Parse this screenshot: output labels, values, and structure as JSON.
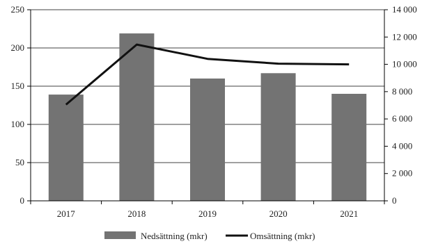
{
  "chart_data": {
    "type": "bar+line",
    "categories": [
      "2017",
      "2018",
      "2019",
      "2020",
      "2021"
    ],
    "series": [
      {
        "name": "Nedsättning (mkr)",
        "type": "bar",
        "axis": "left",
        "values": [
          139,
          219,
          160,
          167,
          140
        ]
      },
      {
        "name": "Omsättning (mkr)",
        "type": "line",
        "axis": "right",
        "values": [
          7050,
          11450,
          10400,
          10050,
          10000
        ]
      }
    ],
    "y_left": {
      "lim": [
        0,
        250
      ],
      "ticks": [
        0,
        50,
        100,
        150,
        200,
        250
      ],
      "tick_labels": [
        "0",
        "50",
        "100",
        "150",
        "200",
        "250"
      ]
    },
    "y_right": {
      "lim": [
        0,
        14000
      ],
      "ticks": [
        0,
        2000,
        4000,
        6000,
        8000,
        10000,
        12000,
        14000
      ],
      "tick_labels": [
        "0",
        "2 000",
        "4 000",
        "6 000",
        "8 000",
        "10 000",
        "12 000",
        "14 000"
      ]
    },
    "grid": "horizontal",
    "legend_position": "bottom",
    "colors": {
      "bar": "#737373",
      "line": "#111111",
      "grid": "#000000"
    }
  }
}
